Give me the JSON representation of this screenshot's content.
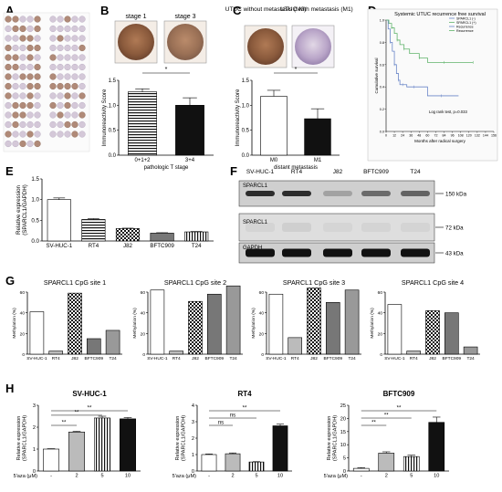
{
  "panels": {
    "A": "A",
    "B": "B",
    "C": "C",
    "D": "D",
    "E": "E",
    "F": "F",
    "G": "G",
    "H": "H"
  },
  "colors": {
    "tissue_brown": "#8a5a3c",
    "tissue_light": "#d6c7d8",
    "tissue_purple": "#9b86b0",
    "bar_dark": "#111111",
    "bar_grey": "#666666",
    "curve_blue": "#6a86c8",
    "curve_green": "#5fb36a",
    "band": "#2a2a2a"
  },
  "panel_B": {
    "image_labels": [
      "stage 1",
      "stage 3"
    ],
    "chart_data": {
      "type": "bar",
      "categories": [
        "0+1+2",
        "3+4"
      ],
      "values": [
        1.27,
        1.0
      ],
      "ylabel": "Immunoreactivity Score",
      "xlabel": "pathologic T stage",
      "yticks": [
        "0.0",
        "0.5",
        "1.0",
        "1.5"
      ],
      "ylim": [
        0,
        1.5
      ],
      "significance": "*"
    }
  },
  "panel_C": {
    "image_labels": [
      "UTUC without metastasis (M0)",
      "UTUC with metastasis (M1)"
    ],
    "chart_data": {
      "type": "bar",
      "categories": [
        "M0",
        "M1"
      ],
      "values": [
        1.18,
        0.73
      ],
      "ylabel": "Immunoreactivity Score",
      "xlabel": "distant metastasis",
      "yticks": [
        "0.0",
        "0.5",
        "1.0",
        "1.5"
      ],
      "ylim": [
        0,
        1.5
      ],
      "significance": "*"
    }
  },
  "panel_D": {
    "chart_data": {
      "type": "line",
      "title": "Systemic UTUC recurrence free survival",
      "xlabel": "Months after radical surgery",
      "ylabel": "Cumulative survival",
      "xticks": [
        "0",
        "12",
        "24",
        "36",
        "48",
        "60",
        "72",
        "84",
        "96",
        "108",
        "120",
        "132",
        "144",
        "156"
      ],
      "yticks": [
        "0.0",
        "0.2",
        "0.4",
        "0.6",
        "0.8",
        "1.0"
      ],
      "legend": [
        "SPARCL1 (-)",
        "SPARCL1 (+)",
        "Recurrence",
        "Recurrence"
      ],
      "annotation": "Log rank test, p=0.033",
      "series": [
        {
          "name": "SPARCL1 (-)",
          "x": [
            0,
            3,
            6,
            9,
            12,
            15,
            18,
            20,
            24,
            30,
            40,
            60,
            80,
            105
          ],
          "y": [
            1.0,
            0.92,
            0.8,
            0.72,
            0.6,
            0.52,
            0.46,
            0.42,
            0.42,
            0.4,
            0.4,
            0.32,
            0.32,
            0.32
          ]
        },
        {
          "name": "SPARCL1 (+)",
          "x": [
            0,
            4,
            8,
            12,
            16,
            20,
            26,
            34,
            48,
            60,
            84,
            100,
            126
          ],
          "y": [
            1.0,
            0.97,
            0.93,
            0.88,
            0.82,
            0.78,
            0.74,
            0.7,
            0.66,
            0.62,
            0.62,
            0.62,
            0.62
          ]
        }
      ]
    }
  },
  "panel_E": {
    "chart_data": {
      "type": "bar",
      "categories": [
        "SV-HUC-1",
        "RT4",
        "J82",
        "BFTC909",
        "T24"
      ],
      "values": [
        1.0,
        0.52,
        0.3,
        0.19,
        0.22
      ],
      "ylabel": "Relative expression (SPARCL1/GAPDH)",
      "yticks": [
        "0.0",
        "0.5",
        "1.0",
        "1.5"
      ],
      "ylim": [
        0,
        1.5
      ]
    }
  },
  "panel_F": {
    "lanes": [
      "SV-HUC-1",
      "RT4",
      "J82",
      "BFTC909",
      "T24"
    ],
    "rows": [
      {
        "label": "SPARCL1",
        "size": "150 kDa"
      },
      {
        "label": "SPARCL1",
        "size": "72 kDa"
      },
      {
        "label": "GAPDH",
        "size": "43 kDa"
      }
    ]
  },
  "panel_G": {
    "chart_data": [
      {
        "type": "bar",
        "title": "SPARCL1 CpG site 1",
        "categories": [
          "SV-HUC-1",
          "RT4",
          "J82",
          "BFTC909",
          "T24"
        ],
        "values": [
          41,
          3,
          59,
          15,
          23
        ],
        "ylabel": "Methylation (%)",
        "yticks": [
          "0",
          "20",
          "40",
          "60"
        ],
        "ylim": [
          0,
          60
        ]
      },
      {
        "type": "bar",
        "title": "SPARCL1 CpG site 2",
        "categories": [
          "SV-HUC-1",
          "RT4",
          "J82",
          "BFTC909",
          "T24"
        ],
        "values": [
          62,
          3,
          51,
          58,
          66
        ],
        "ylabel": "Methylation (%)",
        "yticks": [
          "0",
          "20",
          "40",
          "60"
        ],
        "ylim": [
          0,
          60
        ]
      },
      {
        "type": "bar",
        "title": "SPARCL1 CpG site 3",
        "categories": [
          "SV-HUC-1",
          "RT4",
          "J82",
          "BFTC909",
          "T24"
        ],
        "values": [
          58,
          16,
          64,
          50,
          62
        ],
        "ylabel": "Methylation (%)",
        "yticks": [
          "0",
          "20",
          "40",
          "60"
        ],
        "ylim": [
          0,
          60
        ]
      },
      {
        "type": "bar",
        "title": "SPARCL1 CpG site 4",
        "categories": [
          "SV-HUC-1",
          "RT4",
          "J82",
          "BFTC909",
          "T24"
        ],
        "values": [
          48,
          3,
          42,
          40,
          7
        ],
        "ylabel": "Methylation (%)",
        "yticks": [
          "0",
          "20",
          "40",
          "60"
        ],
        "ylim": [
          0,
          60
        ]
      }
    ]
  },
  "panel_H": {
    "chart_data": [
      {
        "type": "bar",
        "title": "SV-HUC-1",
        "categories": [
          "-",
          "2",
          "5",
          "10"
        ],
        "values": [
          1.0,
          1.78,
          2.42,
          2.38
        ],
        "ylabel": "Relative expression (SPARCL1/GAPDH)",
        "xlabel": "5'aza (μM)",
        "yticks": [
          "0",
          "1",
          "2",
          "3"
        ],
        "ylim": [
          0,
          3
        ],
        "significance": [
          "**",
          "**",
          "**"
        ]
      },
      {
        "type": "bar",
        "title": "RT4",
        "categories": [
          "-",
          "2",
          "5",
          "10"
        ],
        "values": [
          1.0,
          1.05,
          0.55,
          2.75
        ],
        "ylabel": "Relative expression (SPARCL1/GAPDH)",
        "xlabel": "5'aza (μM)",
        "yticks": [
          "0",
          "1",
          "2",
          "3",
          "4"
        ],
        "ylim": [
          0,
          4
        ],
        "significance": [
          "ns",
          "ns",
          "**"
        ]
      },
      {
        "type": "bar",
        "title": "BFTC909",
        "categories": [
          "-",
          "2",
          "5",
          "10"
        ],
        "values": [
          1.0,
          6.8,
          5.5,
          18.5
        ],
        "ylabel": "Relative expression (SPARCL1/GAPDH)",
        "xlabel": "5'aza (μM)",
        "yticks": [
          "0",
          "5",
          "10",
          "15",
          "20",
          "25"
        ],
        "ylim": [
          0,
          25
        ],
        "significance": [
          "**",
          "**",
          "**"
        ]
      }
    ]
  }
}
